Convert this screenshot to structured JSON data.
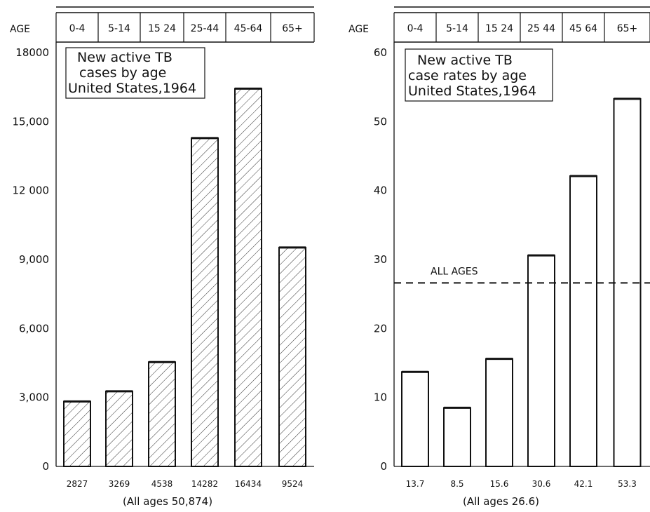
{
  "chart_data": [
    {
      "type": "bar",
      "title_lines": [
        "New active TB",
        "cases by age",
        "United States,1964"
      ],
      "age_header_label": "AGE",
      "categories": [
        "0-4",
        "5-14",
        "15 24",
        "25-44",
        "45-64",
        "65+"
      ],
      "values": [
        2827,
        3269,
        4538,
        14282,
        16434,
        9524
      ],
      "value_labels": [
        "2827",
        "3269",
        "4538",
        "14282",
        "16434",
        "9524"
      ],
      "yticks": [
        "0",
        "3,000",
        "6,000",
        "9,000",
        "12 000",
        "15,000",
        "18000"
      ],
      "ytick_values": [
        0,
        3000,
        6000,
        9000,
        12000,
        15000,
        18000
      ],
      "ylim": [
        0,
        18000
      ],
      "bar_fill": "hatched",
      "footnote": "(All ages 50,874)"
    },
    {
      "type": "bar",
      "title_lines": [
        "New active TB",
        "case rates by age",
        "United States,1964"
      ],
      "age_header_label": "AGE",
      "categories": [
        "0-4",
        "5-14",
        "15 24",
        "25 44",
        "45 64",
        "65+"
      ],
      "values": [
        13.7,
        8.5,
        15.6,
        30.6,
        42.1,
        53.3
      ],
      "value_labels": [
        "13.7",
        "8.5",
        "15.6",
        "30.6",
        "42.1",
        "53.3"
      ],
      "yticks": [
        "0",
        "10",
        "20",
        "30",
        "40",
        "50",
        "60"
      ],
      "ytick_values": [
        0,
        10,
        20,
        30,
        40,
        50,
        60
      ],
      "ylim": [
        0,
        60
      ],
      "bar_fill": "open",
      "reference_line": {
        "label": "ALL AGES",
        "value": 26.6
      },
      "footnote": "(All ages 26.6)"
    }
  ]
}
